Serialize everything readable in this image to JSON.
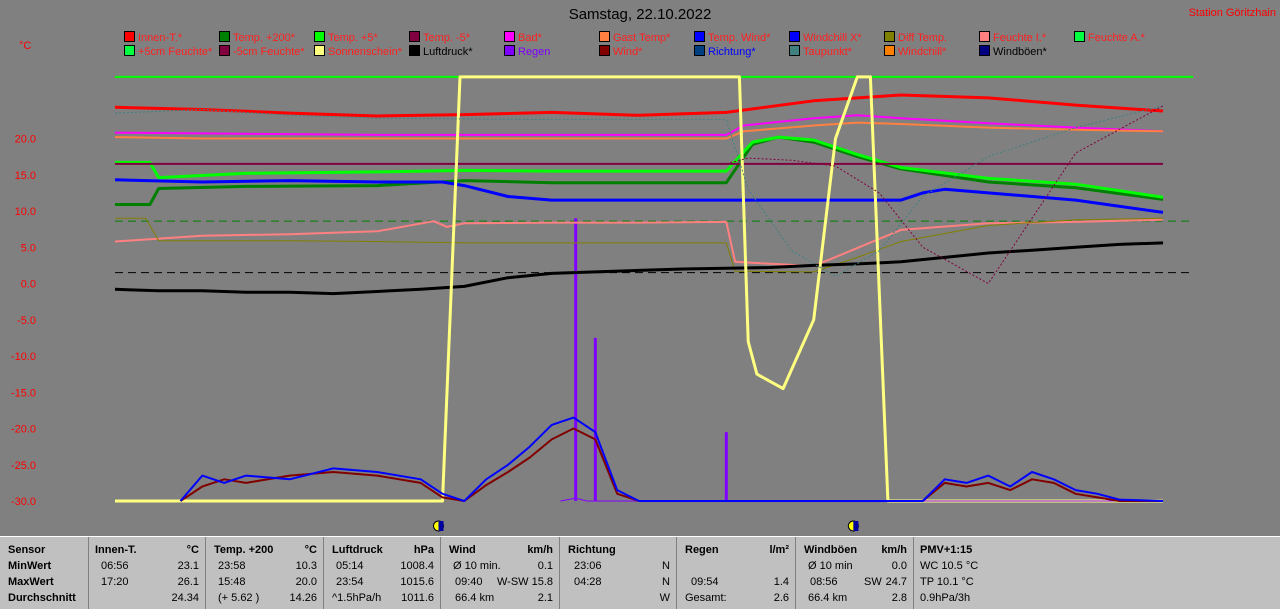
{
  "page": {
    "title": "Samstag, 22.10.2022",
    "station": "Station Göritzhain",
    "unit": "°C"
  },
  "legend": [
    {
      "label": "Innen-T.*",
      "color": "#ff0000",
      "text_color": "#ff2020"
    },
    {
      "label": "Temp. +200*",
      "color": "#008000",
      "text_color": "#ff2020"
    },
    {
      "label": "Temp. +5*",
      "color": "#00ff00",
      "text_color": "#ff2020"
    },
    {
      "label": "Temp. -5*",
      "color": "#800040",
      "text_color": "#ff2020"
    },
    {
      "label": "Bad*",
      "color": "#ff00ff",
      "text_color": "#ff2020"
    },
    {
      "label": "Gast Temp*",
      "color": "#ff8040",
      "text_color": "#ff2020"
    },
    {
      "label": "Temp. Wind*",
      "color": "#0000ff",
      "text_color": "#ff2020"
    },
    {
      "label": "Windchill X*",
      "color": "#0000ff",
      "text_color": "#ff2020"
    },
    {
      "label": "Diff Temp.",
      "color": "#808000",
      "text_color": "#ff2020"
    },
    {
      "label": "Feuchte I.*",
      "color": "#ff8080",
      "text_color": "#ff2020"
    },
    {
      "label": "Feuchte A.*",
      "color": "#00ff40",
      "text_color": "#ff2020"
    },
    {
      "label": "+5cm Feuchte*",
      "color": "#00ff40",
      "text_color": "#ff2020"
    },
    {
      "label": "-5cm Feuchte*",
      "color": "#800040",
      "text_color": "#ff2020"
    },
    {
      "label": "Sonnenschein*",
      "color": "#ffff80",
      "text_color": "#ff2020"
    },
    {
      "label": "Luftdruck*",
      "color": "#000000",
      "text_color": "#000000"
    },
    {
      "label": "Regen",
      "color": "#8000ff",
      "text_color": "#8000ff"
    },
    {
      "label": "Wind*",
      "color": "#800000",
      "text_color": "#ff2020"
    },
    {
      "label": "Richtung*",
      "color": "#004080",
      "text_color": "#0000ff"
    },
    {
      "label": "Taupunkt*",
      "color": "#408080",
      "text_color": "#ff2020"
    },
    {
      "label": "Windchill*",
      "color": "#ff8000",
      "text_color": "#ff2020"
    },
    {
      "label": "Windböen*",
      "color": "#000080",
      "text_color": "#000000"
    }
  ],
  "chart_data": {
    "type": "line",
    "ylim": [
      -30,
      30
    ],
    "yticks": [
      "20.0",
      "15.0",
      "10.0",
      "5.0",
      "0.0",
      "-5.0",
      "-10.0",
      "-15.0",
      "-20.0",
      "-25.0",
      "-30.0"
    ],
    "ytick_values": [
      20,
      15,
      10,
      5,
      0,
      -5,
      -10,
      -15,
      -20,
      -25,
      -30
    ],
    "xlim": [
      0,
      24
    ],
    "sun_markers_hours": [
      7.5,
      17.0
    ],
    "series": [
      {
        "name": "Innen-T.*",
        "color": "#ff0000",
        "x": [
          0,
          2,
          4,
          6,
          8,
          10,
          12,
          14,
          16,
          18,
          20,
          22,
          24
        ],
        "values": [
          24.3,
          24.0,
          23.5,
          23.1,
          23.3,
          23.6,
          23.2,
          23.6,
          25.2,
          26.0,
          25.6,
          24.6,
          23.8
        ]
      },
      {
        "name": "Temp. +200*",
        "color": "#008000",
        "x": [
          0,
          0.8,
          1,
          3,
          6,
          8,
          10,
          12,
          14,
          14.6,
          15.2,
          16,
          17,
          18,
          20,
          22,
          24
        ],
        "values": [
          10.9,
          10.9,
          13.1,
          13.4,
          13.5,
          14.2,
          13.9,
          13.9,
          13.9,
          19.2,
          20.2,
          19.5,
          17.5,
          15.8,
          14.0,
          13.2,
          11.6
        ]
      },
      {
        "name": "Temp. +5*",
        "color": "#00ff00",
        "x": [
          0,
          0.8,
          1,
          3,
          6,
          8,
          10,
          12,
          14,
          14.6,
          15.2,
          16,
          17,
          18,
          20,
          22,
          24
        ],
        "values": [
          16.7,
          16.7,
          14.6,
          15.2,
          15.4,
          15.6,
          15.5,
          15.5,
          15.5,
          19.5,
          20.2,
          19.8,
          17.8,
          16.0,
          14.5,
          13.7,
          11.9
        ]
      },
      {
        "name": "Temp. -5*",
        "color": "#800040",
        "x": [
          0,
          24
        ],
        "values": [
          16.5,
          16.5
        ]
      },
      {
        "name": "Bad*",
        "color": "#ff00ff",
        "x": [
          0,
          2,
          4,
          6,
          8,
          10,
          12,
          14,
          14.4,
          16,
          17,
          18,
          20,
          22,
          24
        ],
        "values": [
          20.8,
          20.7,
          20.6,
          20.5,
          20.5,
          20.5,
          20.5,
          20.5,
          21.8,
          22.8,
          23.2,
          22.8,
          22.1,
          21.5,
          21.0
        ]
      },
      {
        "name": "Gast Temp*",
        "color": "#ff8040",
        "x": [
          0,
          2,
          4,
          6,
          8,
          10,
          12,
          14,
          14.4,
          16,
          17,
          18,
          20,
          22,
          24
        ],
        "values": [
          20.2,
          20.0,
          20.0,
          20.0,
          20.0,
          20.0,
          20.0,
          20.0,
          21.0,
          21.8,
          22.2,
          22.0,
          21.5,
          21.2,
          21.0
        ]
      },
      {
        "name": "Temp. Wind*",
        "color": "#0000ff",
        "x": [
          0,
          2,
          4,
          6,
          7.5,
          8,
          9,
          10,
          12,
          14,
          16,
          18,
          18.5,
          19,
          20,
          22,
          24
        ],
        "values": [
          14.3,
          14.0,
          14.2,
          14.0,
          14.0,
          13.5,
          12.0,
          11.5,
          11.5,
          11.5,
          11.5,
          11.5,
          12.5,
          13.0,
          12.5,
          11.5,
          9.8
        ]
      },
      {
        "name": "Feuchte I.*",
        "color": "#ff8080",
        "x": [
          0,
          2,
          4,
          6,
          7.3,
          7.6,
          8,
          10,
          12,
          14,
          14.2,
          16,
          18,
          20,
          22,
          24
        ],
        "values": [
          5.8,
          6.6,
          6.8,
          7.2,
          8.6,
          7.8,
          8.3,
          8.4,
          8.4,
          8.5,
          3.0,
          2.4,
          7.4,
          8.3,
          8.5,
          8.8
        ]
      },
      {
        "name": "Diff Temp.",
        "color": "#808000",
        "x": [
          0,
          0.7,
          1,
          4,
          6,
          8,
          10,
          12,
          14,
          14.2,
          16,
          17,
          18,
          20,
          22,
          24
        ],
        "values": [
          9.0,
          9.0,
          5.9,
          5.9,
          5.8,
          5.6,
          5.6,
          5.6,
          5.6,
          1.7,
          1.6,
          3.6,
          5.8,
          8.0,
          8.8,
          9.0
        ]
      },
      {
        "name": "Luftdruck*",
        "color": "#000000",
        "x": [
          0,
          1,
          2,
          3,
          4,
          5,
          6,
          7,
          8,
          9,
          10,
          11,
          12,
          13,
          14,
          15,
          16,
          17,
          18,
          19,
          20,
          21,
          22,
          23,
          24
        ],
        "values": [
          -0.8,
          -1.0,
          -1.0,
          -1.2,
          -1.2,
          -1.4,
          -1.1,
          -0.8,
          -0.4,
          0.8,
          1.4,
          1.6,
          1.8,
          2.0,
          2.1,
          2.2,
          2.5,
          2.7,
          3.0,
          3.6,
          4.2,
          4.6,
          5.0,
          5.4,
          5.6
        ]
      },
      {
        "name": "Sonnenschein*",
        "color": "#ffff80",
        "x": [
          0,
          7.5,
          7.9,
          8.5,
          14.3,
          14.5,
          14.7,
          15.3,
          16.0,
          16.5,
          17.0,
          17.3,
          17.7,
          24
        ],
        "values": [
          -30,
          -30,
          28.5,
          28.5,
          28.5,
          -8,
          -12.5,
          -14.5,
          -5,
          20,
          28.5,
          28.5,
          -30,
          -30
        ]
      },
      {
        "name": "Regen",
        "color": "#8000ff",
        "x": [
          10.2,
          10.55,
          10.8,
          11.0,
          11.2,
          11.3,
          11.5,
          11.65,
          11.7,
          11.9,
          14.0,
          14.3,
          14.5,
          24
        ],
        "values": [
          -30,
          -29.6,
          -30,
          -30,
          -30,
          -30,
          -30,
          -30,
          -30,
          -30,
          -30,
          -30,
          -30,
          -30
        ]
      },
      {
        "name": "Wind*",
        "color": "#800000",
        "x": [
          1.5,
          2,
          2.5,
          3,
          4,
          5,
          6,
          7,
          7.5,
          8,
          8.5,
          9,
          9.5,
          10,
          10.5,
          11,
          11.5,
          12,
          18.5,
          19,
          19.5,
          20,
          20.5,
          21,
          21.5,
          22,
          22.5,
          23,
          24
        ],
        "values": [
          -30,
          -28,
          -27,
          -27.5,
          -26.5,
          -26.0,
          -26.5,
          -27.5,
          -29.5,
          -30,
          -27.8,
          -26.0,
          -24.0,
          -21.5,
          -20.0,
          -21.5,
          -29.0,
          -30,
          -30,
          -27.5,
          -28.0,
          -27.5,
          -28.5,
          -27.0,
          -27.5,
          -29.0,
          -29.5,
          -30,
          -30
        ]
      },
      {
        "name": "Windböen*",
        "color": "#0000ff",
        "x": [
          1.5,
          2,
          2.5,
          3,
          4,
          5,
          6,
          7,
          7.5,
          8,
          8.5,
          9,
          9.5,
          10,
          10.5,
          11,
          11.5,
          12,
          18.5,
          19,
          19.5,
          20,
          20.5,
          21,
          21.5,
          22,
          22.5,
          23,
          24
        ],
        "values": [
          -30,
          -26.5,
          -27.5,
          -26.5,
          -27.0,
          -25.5,
          -26.0,
          -27.0,
          -29.0,
          -30,
          -27.0,
          -25.0,
          -22.5,
          -19.5,
          -18.5,
          -20.5,
          -28.5,
          -30,
          -30,
          -27.0,
          -27.5,
          -26.5,
          -28.0,
          -26.0,
          -27.0,
          -28.5,
          -29.0,
          -29.8,
          -30
        ]
      },
      {
        "name": "Taupunkt*",
        "color": "#408080",
        "x": [
          0,
          2,
          4,
          6,
          8,
          10,
          12,
          14,
          14.5,
          15.5,
          16.5,
          17.5,
          18.5,
          20,
          22,
          24
        ],
        "values": [
          23.5,
          24.0,
          23.2,
          22.8,
          22.7,
          22.6,
          22.6,
          22.6,
          13.0,
          4.5,
          1.0,
          4.5,
          12.0,
          17.5,
          21.5,
          24.5
        ]
      },
      {
        "name": "Windchill*",
        "color": "#800040",
        "x": [
          14,
          14.5,
          15.5,
          16.5,
          17.5,
          18.5,
          20,
          22,
          24
        ],
        "values": [
          16.5,
          17.3,
          17.0,
          16.2,
          12.5,
          5.0,
          0.0,
          18.0,
          24.5
        ]
      }
    ],
    "bars": {
      "name": "Regen",
      "color": "#8000ff",
      "x": [
        10.55,
        11.0,
        14.0
      ],
      "values": [
        9,
        -7.5,
        -20.5
      ]
    },
    "reference_lines": [
      {
        "color": "#00ff00",
        "value": 28.5,
        "style": "solid"
      },
      {
        "color": "#000000",
        "value": 1.5,
        "style": "dashed"
      },
      {
        "color": "#008000",
        "value": 8.6,
        "style": "dashed"
      }
    ]
  },
  "stats": {
    "row_labels": [
      "Sensor",
      "MinWert",
      "MaxWert",
      "Durchschnitt"
    ],
    "innen": {
      "title": "Innen-T.",
      "unit": "°C",
      "min_time": "06:56",
      "min": "23.1",
      "max_time": "17:20",
      "max": "26.1",
      "avg": "24.34"
    },
    "temp200": {
      "title": "Temp. +200",
      "unit": "°C",
      "min_time": "23:58",
      "min": "10.3",
      "max_time": "15:48",
      "max": "20.0",
      "avg_extra": "(+ 5.62 )",
      "avg": "14.26"
    },
    "druck": {
      "title": "Luftdruck",
      "unit": "hPa",
      "min_time": "05:14",
      "min": "1008.4",
      "max_time": "23:54",
      "max": "1015.6",
      "trend": "^1.5hPa/h",
      "avg": "1011.6"
    },
    "wind": {
      "title": "Wind",
      "unit": "km/h",
      "r1_label": "Ø 10 min.",
      "r1": "0.1",
      "r2_time": "09:40",
      "r2_dir": "W-SW",
      "r2": "15.8",
      "r3_label": "66.4 km",
      "r3": "2.1"
    },
    "richtung": {
      "title": "Richtung",
      "r1_time": "23:06",
      "r1": "N",
      "r2_time": "04:28",
      "r2": "N",
      "r3": "W"
    },
    "regen": {
      "title": "Regen",
      "unit": "l/m²",
      "r2_time": "09:54",
      "r2": "1.4",
      "r3_label": "Gesamt:",
      "r3": "2.6"
    },
    "boeen": {
      "title": "Windböen",
      "unit": "km/h",
      "r1_label": "Ø 10 min",
      "r1": "0.0",
      "r2_time": "08:56",
      "r2_dir": "SW",
      "r2": "24.7",
      "r3_label": "66.4 km",
      "r3": "2.8"
    },
    "pmv": {
      "title": "PMV+1:15",
      "r1": "WC 10.5 °C",
      "r2": "TP 10.1 °C",
      "r3": "0.9hPa/3h"
    }
  }
}
